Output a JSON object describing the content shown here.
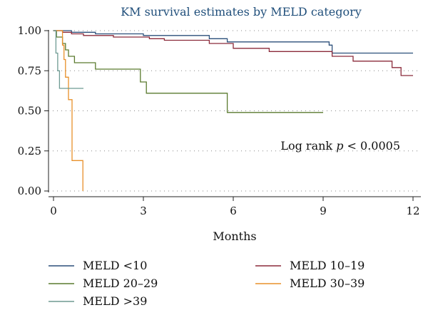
{
  "chart_data": {
    "type": "line",
    "title": "KM survival estimates by MELD category",
    "xlabel": "Months",
    "ylabel": "",
    "xlim": [
      0,
      12
    ],
    "ylim": [
      0,
      1
    ],
    "x_ticks": [
      0,
      3,
      6,
      9,
      12
    ],
    "y_ticks": [
      0.0,
      0.25,
      0.5,
      0.75,
      1.0
    ],
    "y_tick_labels": [
      "0.00",
      "0.25",
      "0.50",
      "0.75",
      "1.00"
    ],
    "grid": "horizontal-dotted",
    "legend_placement": "bottom",
    "annotation": {
      "text": "Log rank ",
      "italic": "p",
      "rest": " < 0.0005",
      "x": 9.0,
      "y": 0.28
    },
    "series": [
      {
        "name": "MELD <10",
        "color": "#2b4f7a",
        "points": [
          [
            0,
            1.0
          ],
          [
            0.6,
            1.0
          ],
          [
            0.6,
            0.99
          ],
          [
            1.4,
            0.99
          ],
          [
            1.4,
            0.98
          ],
          [
            3.0,
            0.98
          ],
          [
            3.0,
            0.97
          ],
          [
            5.2,
            0.97
          ],
          [
            5.2,
            0.95
          ],
          [
            5.8,
            0.95
          ],
          [
            5.8,
            0.93
          ],
          [
            9.2,
            0.93
          ],
          [
            9.2,
            0.91
          ],
          [
            9.3,
            0.91
          ],
          [
            9.3,
            0.86
          ],
          [
            12.0,
            0.86
          ]
        ]
      },
      {
        "name": "MELD 10–19",
        "color": "#8b2a3a",
        "points": [
          [
            0,
            1.0
          ],
          [
            0.3,
            1.0
          ],
          [
            0.3,
            0.99
          ],
          [
            0.6,
            0.99
          ],
          [
            0.6,
            0.98
          ],
          [
            1.0,
            0.98
          ],
          [
            1.0,
            0.97
          ],
          [
            2.0,
            0.97
          ],
          [
            2.0,
            0.96
          ],
          [
            3.2,
            0.96
          ],
          [
            3.2,
            0.95
          ],
          [
            3.7,
            0.95
          ],
          [
            3.7,
            0.94
          ],
          [
            5.2,
            0.94
          ],
          [
            5.2,
            0.92
          ],
          [
            6.0,
            0.92
          ],
          [
            6.0,
            0.89
          ],
          [
            7.2,
            0.89
          ],
          [
            7.2,
            0.87
          ],
          [
            9.3,
            0.87
          ],
          [
            9.3,
            0.84
          ],
          [
            10.0,
            0.84
          ],
          [
            10.0,
            0.81
          ],
          [
            11.3,
            0.81
          ],
          [
            11.3,
            0.77
          ],
          [
            11.6,
            0.77
          ],
          [
            11.6,
            0.72
          ],
          [
            12.0,
            0.72
          ]
        ]
      },
      {
        "name": "MELD 20–29",
        "color": "#5a7a2e",
        "points": [
          [
            0,
            1.0
          ],
          [
            0.1,
            1.0
          ],
          [
            0.1,
            0.96
          ],
          [
            0.3,
            0.96
          ],
          [
            0.3,
            0.92
          ],
          [
            0.4,
            0.92
          ],
          [
            0.4,
            0.88
          ],
          [
            0.5,
            0.88
          ],
          [
            0.5,
            0.84
          ],
          [
            0.7,
            0.84
          ],
          [
            0.7,
            0.8
          ],
          [
            1.4,
            0.8
          ],
          [
            1.4,
            0.76
          ],
          [
            2.9,
            0.76
          ],
          [
            2.9,
            0.68
          ],
          [
            3.1,
            0.68
          ],
          [
            3.1,
            0.61
          ],
          [
            5.8,
            0.61
          ],
          [
            5.8,
            0.49
          ],
          [
            9.0,
            0.49
          ]
        ]
      },
      {
        "name": "MELD 30–39",
        "color": "#e8902a",
        "points": [
          [
            0,
            1.0
          ],
          [
            0.3,
            1.0
          ],
          [
            0.3,
            0.91
          ],
          [
            0.35,
            0.91
          ],
          [
            0.35,
            0.82
          ],
          [
            0.4,
            0.82
          ],
          [
            0.4,
            0.71
          ],
          [
            0.5,
            0.71
          ],
          [
            0.5,
            0.57
          ],
          [
            0.62,
            0.57
          ],
          [
            0.62,
            0.19
          ],
          [
            0.98,
            0.19
          ],
          [
            0.98,
            0.0
          ]
        ]
      },
      {
        "name": "MELD >39",
        "color": "#6e9a92",
        "points": [
          [
            0,
            1.0
          ],
          [
            0.08,
            1.0
          ],
          [
            0.08,
            0.86
          ],
          [
            0.14,
            0.86
          ],
          [
            0.14,
            0.75
          ],
          [
            0.2,
            0.75
          ],
          [
            0.2,
            0.64
          ],
          [
            1.0,
            0.64
          ]
        ]
      }
    ]
  }
}
